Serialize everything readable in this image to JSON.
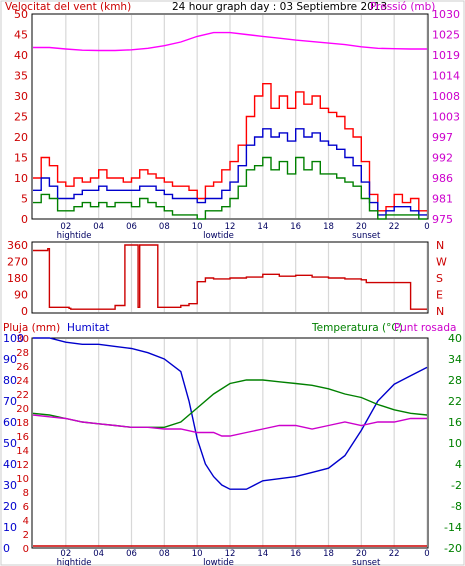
{
  "chart_data": [
    {
      "type": "line",
      "title": "24 hour graph day : 03 Septiembre 2013",
      "ylabel_left": "Velocitat del vent (kmh)",
      "ylabel_right": "Pressió (mb)",
      "ylim_left": [
        0,
        50
      ],
      "yticks_left": [
        "0",
        "5",
        "10",
        "15",
        "20",
        "25",
        "30",
        "35",
        "40",
        "45",
        "50"
      ],
      "ylim_right": [
        975,
        1030
      ],
      "yticks_right": [
        "975",
        "981",
        "986",
        "992",
        "997",
        "1003",
        "1008",
        "1014",
        "1019",
        "1025",
        "1030"
      ],
      "x_hours": [
        0,
        24
      ],
      "xticks": [
        "02",
        "04",
        "06",
        "08",
        "10",
        "12",
        "14",
        "16",
        "18",
        "20",
        "22",
        "0"
      ],
      "markers": [
        {
          "label": "hightide",
          "hour": 2.5
        },
        {
          "label": "lowtide",
          "hour": 11.3
        },
        {
          "label": "sunset",
          "hour": 20.3
        }
      ],
      "series": [
        {
          "color": "#ff00ff",
          "hours": [
            0,
            1,
            2,
            3,
            4,
            5,
            6,
            7,
            8,
            9,
            10,
            11,
            12,
            13,
            14,
            15,
            16,
            17,
            18,
            19,
            20,
            21,
            22,
            23,
            24
          ],
          "values": [
            1021,
            1021,
            1020.6,
            1020.3,
            1020.2,
            1020.2,
            1020.4,
            1020.8,
            1021.5,
            1022.5,
            1024,
            1025,
            1025,
            1024.5,
            1024,
            1023.5,
            1023,
            1022.6,
            1022.2,
            1021.8,
            1021.2,
            1020.8,
            1020.7,
            1020.6,
            1020.6
          ]
        },
        {
          "color": "#ff0000",
          "hours": [
            0,
            0.5,
            1,
            1.5,
            2,
            2.5,
            3,
            3.5,
            4,
            4.5,
            5,
            5.5,
            6,
            6.5,
            7,
            7.5,
            8,
            8.5,
            9,
            9.5,
            10,
            10.5,
            11,
            11.5,
            12,
            12.5,
            13,
            13.5,
            14,
            14.5,
            15,
            15.5,
            16,
            16.5,
            17,
            17.5,
            18,
            18.5,
            19,
            19.5,
            20,
            20.5,
            21,
            21.5,
            22,
            22.5,
            23,
            23.5,
            24
          ],
          "values": [
            10,
            15,
            13,
            9,
            8,
            10,
            9,
            10,
            12,
            10,
            10,
            9,
            10,
            12,
            11,
            10,
            9,
            8,
            8,
            7,
            5,
            8,
            9,
            12,
            14,
            18,
            25,
            30,
            33,
            27,
            30,
            27,
            31,
            28,
            30,
            27,
            26,
            25,
            22,
            20,
            14,
            6,
            2,
            3,
            6,
            4,
            5,
            2,
            2
          ]
        },
        {
          "color": "#0000cc",
          "hours": [
            0,
            0.5,
            1,
            1.5,
            2,
            2.5,
            3,
            3.5,
            4,
            4.5,
            5,
            5.5,
            6,
            6.5,
            7,
            7.5,
            8,
            8.5,
            9,
            9.5,
            10,
            10.5,
            11,
            11.5,
            12,
            12.5,
            13,
            13.5,
            14,
            14.5,
            15,
            15.5,
            16,
            16.5,
            17,
            17.5,
            18,
            18.5,
            19,
            19.5,
            20,
            20.5,
            21,
            21.5,
            22,
            22.5,
            23,
            23.5,
            24
          ],
          "values": [
            7,
            10,
            8,
            5,
            5,
            6,
            7,
            7,
            8,
            7,
            7,
            7,
            7,
            8,
            8,
            7,
            6,
            5,
            5,
            5,
            4,
            5,
            5,
            7,
            9,
            13,
            18,
            20,
            22,
            20,
            21,
            19,
            22,
            20,
            21,
            19,
            18,
            17,
            15,
            13,
            9,
            4,
            1,
            2,
            3,
            3,
            2,
            1,
            1
          ]
        },
        {
          "color": "#008000",
          "hours": [
            0,
            0.5,
            1,
            1.5,
            2,
            2.5,
            3,
            3.5,
            4,
            4.5,
            5,
            5.5,
            6,
            6.5,
            7,
            7.5,
            8,
            8.5,
            9,
            9.5,
            10,
            10.5,
            11,
            11.5,
            12,
            12.5,
            13,
            13.5,
            14,
            14.5,
            15,
            15.5,
            16,
            16.5,
            17,
            17.5,
            18,
            18.5,
            19,
            19.5,
            20,
            20.5,
            21,
            21.5,
            22,
            22.5,
            23,
            23.5,
            24
          ],
          "values": [
            4,
            6,
            5,
            2,
            2,
            3,
            4,
            3,
            4,
            3,
            4,
            4,
            3,
            5,
            4,
            3,
            2,
            1,
            1,
            1,
            0,
            2,
            2,
            3,
            5,
            8,
            12,
            13,
            15,
            12,
            14,
            11,
            15,
            12,
            14,
            11,
            11,
            10,
            9,
            8,
            5,
            2,
            0,
            1,
            1,
            1,
            1,
            0,
            0
          ]
        }
      ]
    },
    {
      "type": "line",
      "ylim": [
        0,
        360
      ],
      "yticks_left": [
        "0",
        "90",
        "180",
        "270",
        "360"
      ],
      "yticks_right": [
        "N",
        "E",
        "S",
        "W",
        "N"
      ],
      "series": [
        {
          "color": "#cc0000",
          "hours": [
            0,
            0.8,
            0.9,
            1,
            2,
            2.2,
            2.3,
            3,
            4,
            5,
            5.5,
            5.6,
            6,
            6.4,
            6.5,
            7,
            7.5,
            7.6,
            8,
            9,
            9.5,
            10,
            10.5,
            11,
            12,
            13,
            14,
            15,
            16,
            17,
            18,
            19,
            20,
            20.3,
            22,
            22.5,
            23,
            24
          ],
          "values": [
            330,
            330,
            340,
            20,
            20,
            15,
            10,
            10,
            10,
            30,
            30,
            360,
            360,
            20,
            360,
            360,
            360,
            20,
            20,
            30,
            40,
            160,
            180,
            175,
            180,
            185,
            200,
            190,
            195,
            185,
            180,
            175,
            170,
            155,
            155,
            155,
            10,
            10
          ]
        }
      ]
    },
    {
      "type": "line",
      "ylabel_left_rain": "Pluja (mm)",
      "ylabel_left_humidity": "Humitat",
      "ylabel_right": "Temperatura (°C)",
      "ylabel_right2": "Punt rosada",
      "yticks_humidity": [
        "0",
        "10",
        "20",
        "30",
        "40",
        "50",
        "60",
        "70",
        "80",
        "90",
        "100"
      ],
      "yticks_rain": [
        "0",
        "2",
        "4",
        "6",
        "8",
        "10",
        "12",
        "14",
        "16",
        "18",
        "20",
        "22",
        "24",
        "26",
        "28",
        "30"
      ],
      "yticks_temp": [
        "-20",
        "-14",
        "-8",
        "-2",
        "4",
        "10",
        "16",
        "22",
        "28",
        "34",
        "40"
      ],
      "ylim_humidity": [
        0,
        100
      ],
      "ylim_temp": [
        -20,
        40
      ],
      "series": [
        {
          "color": "#0000cc",
          "hours": [
            0,
            1,
            2,
            3,
            4,
            5,
            6,
            7,
            8,
            9,
            9.5,
            10,
            10.5,
            11,
            11.5,
            12,
            13,
            14,
            15,
            16,
            17,
            18,
            19,
            20,
            21,
            22,
            23,
            24
          ],
          "values": [
            100,
            100,
            98,
            97,
            97,
            96,
            95,
            93,
            90,
            84,
            70,
            52,
            40,
            34,
            30,
            28,
            28,
            32,
            33,
            34,
            36,
            38,
            44,
            56,
            70,
            78,
            82,
            86
          ]
        },
        {
          "color": "#008000",
          "hours": [
            0,
            1,
            2,
            3,
            4,
            5,
            6,
            7,
            8,
            9,
            10,
            11,
            12,
            13,
            14,
            15,
            16,
            17,
            18,
            19,
            20,
            21,
            22,
            23,
            24
          ],
          "values": [
            18.5,
            18,
            17,
            16,
            15.5,
            15,
            14.5,
            14.5,
            14.5,
            16,
            20,
            24,
            27,
            28,
            28,
            27.5,
            27,
            26.5,
            25.5,
            24,
            23,
            21,
            19.5,
            18.5,
            18
          ]
        },
        {
          "color": "#cc00cc",
          "hours": [
            0,
            1,
            2,
            3,
            4,
            5,
            6,
            7,
            8,
            9,
            10,
            11,
            11.5,
            12,
            13,
            14,
            15,
            16,
            17,
            18,
            19,
            20,
            21,
            22,
            23,
            24
          ],
          "values": [
            18,
            17.5,
            17,
            16,
            15.5,
            15,
            14.5,
            14.5,
            14,
            14,
            13,
            13,
            12,
            12,
            13,
            14,
            15,
            15,
            14,
            15,
            16,
            15,
            16,
            16,
            17,
            17
          ]
        },
        {
          "color": "#cc0000",
          "hours": [
            0,
            24
          ],
          "values": [
            0,
            0
          ]
        }
      ]
    }
  ]
}
